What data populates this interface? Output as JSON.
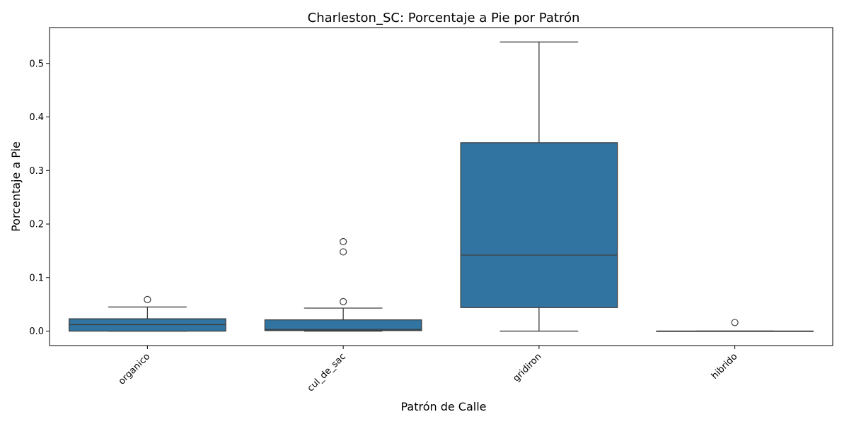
{
  "chart_data": {
    "type": "box",
    "title": "Charleston_SC: Porcentaje a Pie por Patrón",
    "xlabel": "Patrón de Calle",
    "ylabel": "Porcentaje a Pie",
    "ylim": [
      -0.027,
      0.567
    ],
    "yticks": [
      0.0,
      0.1,
      0.2,
      0.3,
      0.4,
      0.5
    ],
    "ytick_labels": [
      "0.0",
      "0.1",
      "0.2",
      "0.3",
      "0.4",
      "0.5"
    ],
    "categories": [
      "organico",
      "cul_de_sac",
      "gridiron",
      "hibrido"
    ],
    "boxes": [
      {
        "category": "organico",
        "whisker_low": 0.0,
        "q1": 0.0,
        "median": 0.012,
        "q3": 0.023,
        "whisker_high": 0.045,
        "outliers": [
          0.059
        ]
      },
      {
        "category": "cul_de_sac",
        "whisker_low": 0.0,
        "q1": 0.001,
        "median": 0.003,
        "q3": 0.021,
        "whisker_high": 0.043,
        "outliers": [
          0.055,
          0.148,
          0.167
        ]
      },
      {
        "category": "gridiron",
        "whisker_low": 0.0,
        "q1": 0.044,
        "median": 0.142,
        "q3": 0.352,
        "whisker_high": 0.54,
        "outliers": []
      },
      {
        "category": "hibrido",
        "whisker_low": 0.0,
        "q1": 0.0,
        "median": 0.0,
        "q3": 0.0,
        "whisker_high": 0.0,
        "outliers": [
          0.016
        ]
      }
    ],
    "box_color": "#3274a1",
    "line_color": "#3d3d3d",
    "grid": false,
    "legend": "none"
  }
}
